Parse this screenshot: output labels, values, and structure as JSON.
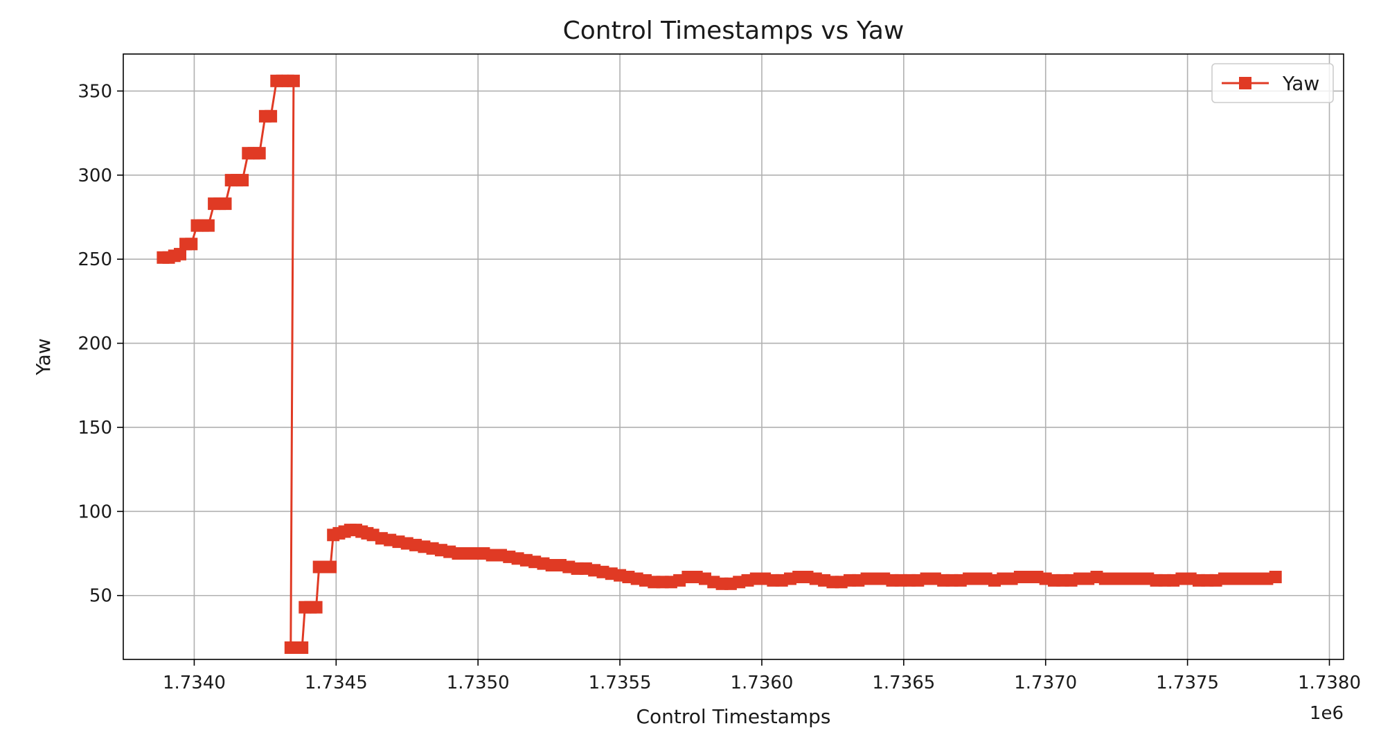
{
  "chart_data": {
    "type": "line",
    "title": "Control Timestamps vs Yaw",
    "xlabel": "Control Timestamps",
    "ylabel": "Yaw",
    "x_offset_label": "1e6",
    "x_scale": 1000000,
    "xlim": [
      1.73375,
      1.73805
    ],
    "ylim": [
      12,
      372
    ],
    "x_ticks": [
      1.734,
      1.7345,
      1.735,
      1.7355,
      1.736,
      1.7365,
      1.737,
      1.7375,
      1.738
    ],
    "x_tick_labels": [
      "1.7340",
      "1.7345",
      "1.7350",
      "1.7355",
      "1.7360",
      "1.7365",
      "1.7370",
      "1.7375",
      "1.7380"
    ],
    "y_ticks": [
      50,
      100,
      150,
      200,
      250,
      300,
      350
    ],
    "y_tick_labels": [
      "50",
      "100",
      "150",
      "200",
      "250",
      "300",
      "350"
    ],
    "grid": true,
    "legend": {
      "position": "top-right"
    },
    "series": [
      {
        "name": "Yaw",
        "color": "#e03a24",
        "marker": "square",
        "points": [
          [
            1.73389,
            251
          ],
          [
            1.73391,
            251
          ],
          [
            1.73393,
            252
          ],
          [
            1.73395,
            253
          ],
          [
            1.73397,
            259
          ],
          [
            1.73399,
            259
          ],
          [
            1.73401,
            270
          ],
          [
            1.73403,
            270
          ],
          [
            1.73405,
            270
          ],
          [
            1.73407,
            283
          ],
          [
            1.73409,
            283
          ],
          [
            1.73411,
            283
          ],
          [
            1.73413,
            297
          ],
          [
            1.73415,
            297
          ],
          [
            1.73417,
            297
          ],
          [
            1.73419,
            313
          ],
          [
            1.73421,
            313
          ],
          [
            1.73423,
            313
          ],
          [
            1.73425,
            335
          ],
          [
            1.73427,
            335
          ],
          [
            1.73429,
            356
          ],
          [
            1.73431,
            356
          ],
          [
            1.73433,
            356
          ],
          [
            1.73435,
            356
          ],
          [
            1.73434,
            19
          ],
          [
            1.73436,
            19
          ],
          [
            1.73438,
            19
          ],
          [
            1.73439,
            43
          ],
          [
            1.73441,
            43
          ],
          [
            1.73443,
            43
          ],
          [
            1.73444,
            67
          ],
          [
            1.73446,
            67
          ],
          [
            1.73448,
            67
          ],
          [
            1.73449,
            86
          ],
          [
            1.73451,
            87
          ],
          [
            1.73453,
            88
          ],
          [
            1.73455,
            89
          ],
          [
            1.73457,
            89
          ],
          [
            1.73459,
            88
          ],
          [
            1.73461,
            87
          ],
          [
            1.73463,
            86
          ],
          [
            1.73466,
            84
          ],
          [
            1.73469,
            83
          ],
          [
            1.73472,
            82
          ],
          [
            1.73475,
            81
          ],
          [
            1.73478,
            80
          ],
          [
            1.73481,
            79
          ],
          [
            1.73484,
            78
          ],
          [
            1.73487,
            77
          ],
          [
            1.7349,
            76
          ],
          [
            1.73493,
            75
          ],
          [
            1.73496,
            75
          ],
          [
            1.73499,
            75
          ],
          [
            1.73502,
            75
          ],
          [
            1.73505,
            74
          ],
          [
            1.73508,
            74
          ],
          [
            1.73511,
            73
          ],
          [
            1.73514,
            72
          ],
          [
            1.73517,
            71
          ],
          [
            1.7352,
            70
          ],
          [
            1.73523,
            69
          ],
          [
            1.73526,
            68
          ],
          [
            1.73529,
            68
          ],
          [
            1.73532,
            67
          ],
          [
            1.73535,
            66
          ],
          [
            1.73538,
            66
          ],
          [
            1.73541,
            65
          ],
          [
            1.73544,
            64
          ],
          [
            1.73547,
            63
          ],
          [
            1.7355,
            62
          ],
          [
            1.73553,
            61
          ],
          [
            1.73556,
            60
          ],
          [
            1.73559,
            59
          ],
          [
            1.73562,
            58
          ],
          [
            1.73565,
            58
          ],
          [
            1.73568,
            58
          ],
          [
            1.73571,
            59
          ],
          [
            1.73574,
            61
          ],
          [
            1.73577,
            61
          ],
          [
            1.7358,
            60
          ],
          [
            1.73583,
            58
          ],
          [
            1.73586,
            57
          ],
          [
            1.73589,
            57
          ],
          [
            1.73592,
            58
          ],
          [
            1.73595,
            59
          ],
          [
            1.73598,
            60
          ],
          [
            1.73601,
            60
          ],
          [
            1.73604,
            59
          ],
          [
            1.73607,
            59
          ],
          [
            1.7361,
            60
          ],
          [
            1.73613,
            61
          ],
          [
            1.73616,
            61
          ],
          [
            1.73619,
            60
          ],
          [
            1.73622,
            59
          ],
          [
            1.73625,
            58
          ],
          [
            1.73628,
            58
          ],
          [
            1.73631,
            59
          ],
          [
            1.73634,
            59
          ],
          [
            1.73637,
            60
          ],
          [
            1.7364,
            60
          ],
          [
            1.73643,
            60
          ],
          [
            1.73646,
            59
          ],
          [
            1.73649,
            59
          ],
          [
            1.73652,
            59
          ],
          [
            1.73655,
            59
          ],
          [
            1.73658,
            60
          ],
          [
            1.73661,
            60
          ],
          [
            1.73664,
            59
          ],
          [
            1.73667,
            59
          ],
          [
            1.7367,
            59
          ],
          [
            1.73673,
            60
          ],
          [
            1.73676,
            60
          ],
          [
            1.73679,
            60
          ],
          [
            1.73682,
            59
          ],
          [
            1.73685,
            60
          ],
          [
            1.73688,
            60
          ],
          [
            1.73691,
            61
          ],
          [
            1.73694,
            61
          ],
          [
            1.73697,
            61
          ],
          [
            1.737,
            60
          ],
          [
            1.73703,
            59
          ],
          [
            1.73706,
            59
          ],
          [
            1.73709,
            59
          ],
          [
            1.73712,
            60
          ],
          [
            1.73715,
            60
          ],
          [
            1.73718,
            61
          ],
          [
            1.73721,
            60
          ],
          [
            1.73724,
            60
          ],
          [
            1.73727,
            60
          ],
          [
            1.7373,
            60
          ],
          [
            1.73733,
            60
          ],
          [
            1.73736,
            60
          ],
          [
            1.73739,
            59
          ],
          [
            1.73742,
            59
          ],
          [
            1.73745,
            59
          ],
          [
            1.73748,
            60
          ],
          [
            1.73751,
            60
          ],
          [
            1.73754,
            59
          ],
          [
            1.73757,
            59
          ],
          [
            1.7376,
            59
          ],
          [
            1.73763,
            60
          ],
          [
            1.73766,
            60
          ],
          [
            1.73769,
            60
          ],
          [
            1.73772,
            60
          ],
          [
            1.73775,
            60
          ],
          [
            1.73778,
            60
          ],
          [
            1.73781,
            61
          ]
        ]
      }
    ]
  }
}
